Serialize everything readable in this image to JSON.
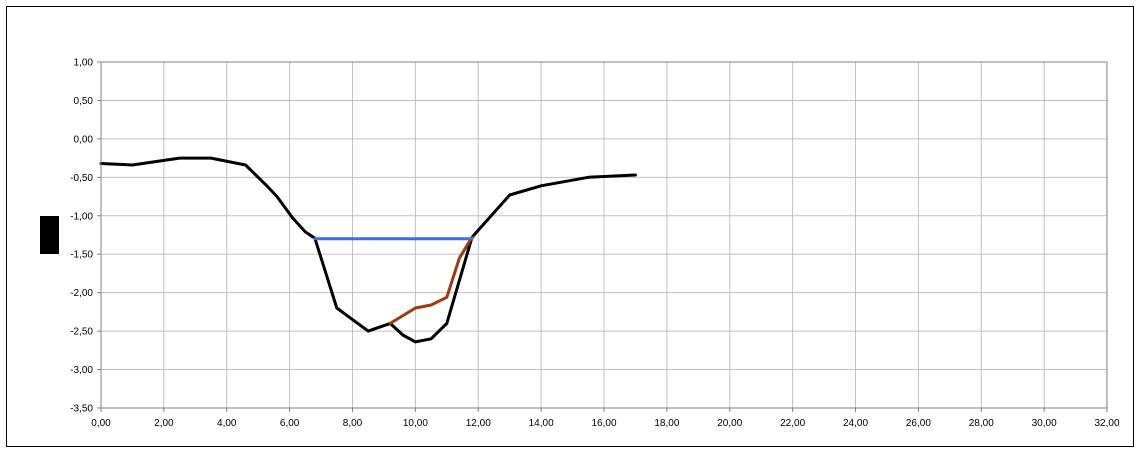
{
  "chart_data": {
    "type": "line",
    "title": "",
    "xlabel": "",
    "ylabel": "",
    "xlim": [
      0,
      32
    ],
    "ylim": [
      -3.5,
      1.0
    ],
    "grid": true,
    "x_ticks": [
      "0,00",
      "2,00",
      "4,00",
      "6,00",
      "8,00",
      "10,00",
      "12,00",
      "14,00",
      "16,00",
      "18,00",
      "20,00",
      "22,00",
      "24,00",
      "26,00",
      "28,00",
      "30,00",
      "32,00"
    ],
    "y_ticks": [
      "1,00",
      "0,50",
      "0,00",
      "-0,50",
      "-1,00",
      "-1,50",
      "-2,00",
      "-2,50",
      "-3,00",
      "-3,50"
    ],
    "series": [
      {
        "color": "#000000",
        "points": [
          [
            0,
            -0.32
          ],
          [
            1,
            -0.34
          ],
          [
            2.5,
            -0.25
          ],
          [
            3.5,
            -0.25
          ],
          [
            4.6,
            -0.34
          ],
          [
            5.3,
            -0.62
          ],
          [
            5.6,
            -0.75
          ],
          [
            6.1,
            -1.03
          ],
          [
            6.5,
            -1.21
          ],
          [
            6.8,
            -1.29
          ],
          [
            7.0,
            -1.55
          ],
          [
            7.5,
            -2.2
          ],
          [
            8.0,
            -2.35
          ],
          [
            8.5,
            -2.5
          ],
          [
            9.2,
            -2.4
          ],
          [
            9.6,
            -2.55
          ],
          [
            10.0,
            -2.64
          ],
          [
            10.5,
            -2.6
          ],
          [
            11.0,
            -2.4
          ],
          [
            11.8,
            -1.28
          ],
          [
            13.0,
            -0.73
          ],
          [
            14.0,
            -0.61
          ],
          [
            15.5,
            -0.5
          ],
          [
            17.0,
            -0.47
          ]
        ]
      },
      {
        "color": "#a03a0a",
        "points": [
          [
            9.2,
            -2.4
          ],
          [
            10.0,
            -2.2
          ],
          [
            10.5,
            -2.16
          ],
          [
            11.0,
            -2.06
          ],
          [
            11.4,
            -1.55
          ],
          [
            11.8,
            -1.28
          ]
        ]
      },
      {
        "color": "#3a6ee8",
        "points": [
          [
            6.8,
            -1.3
          ],
          [
            11.8,
            -1.3
          ]
        ]
      }
    ]
  }
}
